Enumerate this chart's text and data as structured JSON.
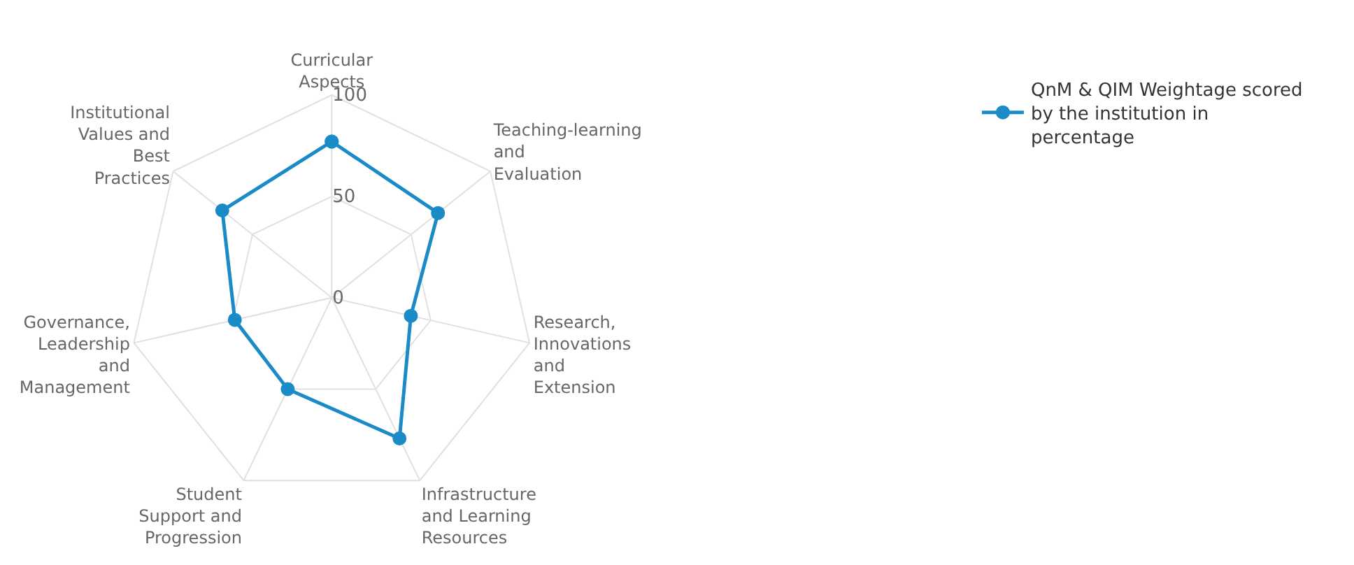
{
  "chart_data": {
    "type": "radar",
    "categories": [
      "Curricular Aspects",
      "Teaching-learning and Evaluation",
      "Research, Innovations and Extension",
      "Infrastructure and Learning Resources",
      "Student Support and Progression",
      "Governance, Leadership and Management",
      "Institutional Values and Best Practices"
    ],
    "series": [
      {
        "name": "QnM & QIM Weightage scored by the institution in percentage",
        "color": "#1a8bc7",
        "values": [
          77,
          67,
          40,
          77,
          50,
          49,
          69
        ]
      }
    ],
    "ylim": [
      0,
      100
    ],
    "yticks": [
      0,
      50,
      100
    ],
    "grid": true,
    "legend": "top right",
    "marker": "circle",
    "line_style": "solid"
  }
}
